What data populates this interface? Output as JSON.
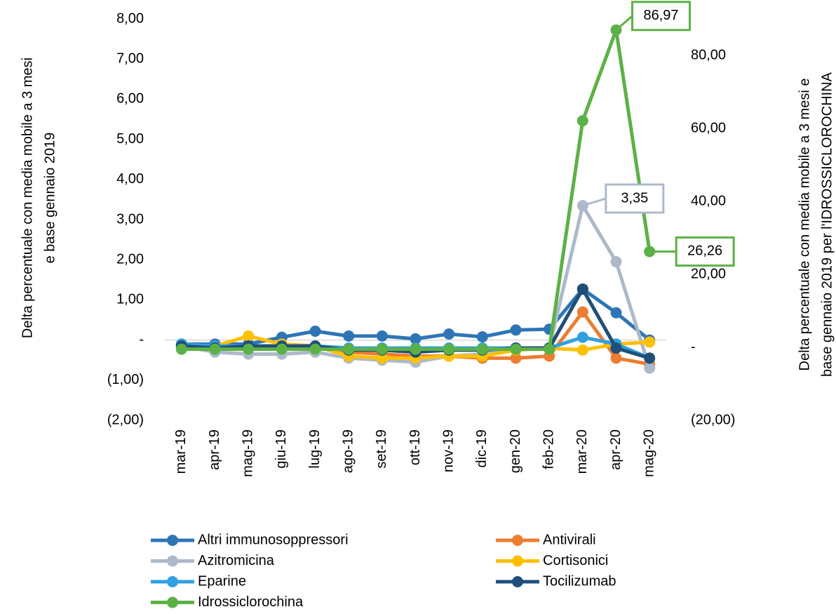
{
  "chart_data": {
    "type": "line",
    "categories": [
      "mar-19",
      "apr-19",
      "mag-19",
      "giu-19",
      "lug-19",
      "ago-19",
      "set-19",
      "ott-19",
      "nov-19",
      "dic-19",
      "gen-20",
      "feb-20",
      "mar-20",
      "apr-20",
      "mag-20"
    ],
    "ylabel": [
      "Delta percentuale con media mobile a 3 mesi",
      "e base gennaio 2019"
    ],
    "y2label": [
      "Delta percentuale con media mobile a 3 mesi e",
      "base gennaio 2019 per l'IDROSSICLOROCHINA"
    ],
    "ylim": [
      -2,
      8
    ],
    "yticks": [
      {
        "value": -2,
        "label": "(2,00)"
      },
      {
        "value": -1,
        "label": "(1,00)"
      },
      {
        "value": 0,
        "label": "-"
      },
      {
        "value": 1,
        "label": "1,00"
      },
      {
        "value": 2,
        "label": "2,00"
      },
      {
        "value": 3,
        "label": "3,00"
      },
      {
        "value": 4,
        "label": "4,00"
      },
      {
        "value": 5,
        "label": "5,00"
      },
      {
        "value": 6,
        "label": "6,00"
      },
      {
        "value": 7,
        "label": "7,00"
      },
      {
        "value": 8,
        "label": "8,00"
      }
    ],
    "y2lim": [
      -20,
      90
    ],
    "y2ticks": [
      {
        "value": -20,
        "label": "(20,00)"
      },
      {
        "value": 0,
        "label": "-"
      },
      {
        "value": 20,
        "label": "20,00"
      },
      {
        "value": 40,
        "label": "40,00"
      },
      {
        "value": 60,
        "label": "60,00"
      },
      {
        "value": 80,
        "label": "80,00"
      }
    ],
    "grid": false,
    "legend": "bottom",
    "series": [
      {
        "name": "Altri immunosoppressori",
        "color": "#2e75b6",
        "values": [
          -0.1,
          -0.1,
          -0.1,
          0.07,
          0.22,
          0.1,
          0.1,
          0.03,
          0.15,
          0.08,
          0.25,
          0.27,
          1.27,
          0.68,
          0.0
        ]
      },
      {
        "name": "Antivirali",
        "color": "#ed7d31",
        "values": [
          -0.15,
          -0.2,
          -0.2,
          -0.2,
          -0.15,
          -0.3,
          -0.35,
          -0.4,
          -0.4,
          -0.45,
          -0.45,
          -0.4,
          0.7,
          -0.45,
          -0.6
        ]
      },
      {
        "name": "Azitromicina",
        "color": "#adb9ca",
        "values": [
          -0.15,
          -0.3,
          -0.35,
          -0.35,
          -0.3,
          -0.45,
          -0.5,
          -0.55,
          -0.4,
          -0.35,
          -0.2,
          -0.2,
          3.35,
          1.95,
          -0.7
        ],
        "value_labels": [
          null,
          null,
          null,
          null,
          null,
          null,
          null,
          null,
          null,
          null,
          null,
          null,
          "3,35",
          null,
          null
        ]
      },
      {
        "name": "Cortisonici",
        "color": "#ffc000",
        "values": [
          -0.15,
          -0.15,
          0.1,
          -0.1,
          -0.15,
          -0.4,
          -0.45,
          -0.45,
          -0.4,
          -0.4,
          -0.25,
          -0.2,
          -0.25,
          -0.1,
          -0.05
        ]
      },
      {
        "name": "Eparine",
        "color": "#31a0e0",
        "values": [
          -0.1,
          -0.15,
          -0.15,
          -0.15,
          -0.15,
          -0.2,
          -0.2,
          -0.2,
          -0.2,
          -0.2,
          -0.2,
          -0.2,
          0.07,
          -0.1,
          -0.45
        ]
      },
      {
        "name": "Tocilizumab",
        "color": "#1f4e79",
        "values": [
          -0.15,
          -0.2,
          -0.15,
          -0.15,
          -0.15,
          -0.25,
          -0.25,
          -0.3,
          -0.25,
          -0.25,
          -0.2,
          -0.2,
          1.27,
          -0.2,
          -0.45
        ]
      },
      {
        "name": "Idrossiclorochina",
        "color": "#5cb146",
        "axis": "y2",
        "values": [
          -0.5,
          -0.5,
          -0.5,
          -0.5,
          -0.5,
          -0.5,
          -0.5,
          -0.5,
          -0.5,
          -0.5,
          -0.5,
          -0.5,
          62.1,
          86.97,
          26.26
        ],
        "value_labels": [
          null,
          null,
          null,
          null,
          null,
          null,
          null,
          null,
          null,
          null,
          null,
          null,
          null,
          "86,97",
          "26,26"
        ]
      }
    ]
  }
}
